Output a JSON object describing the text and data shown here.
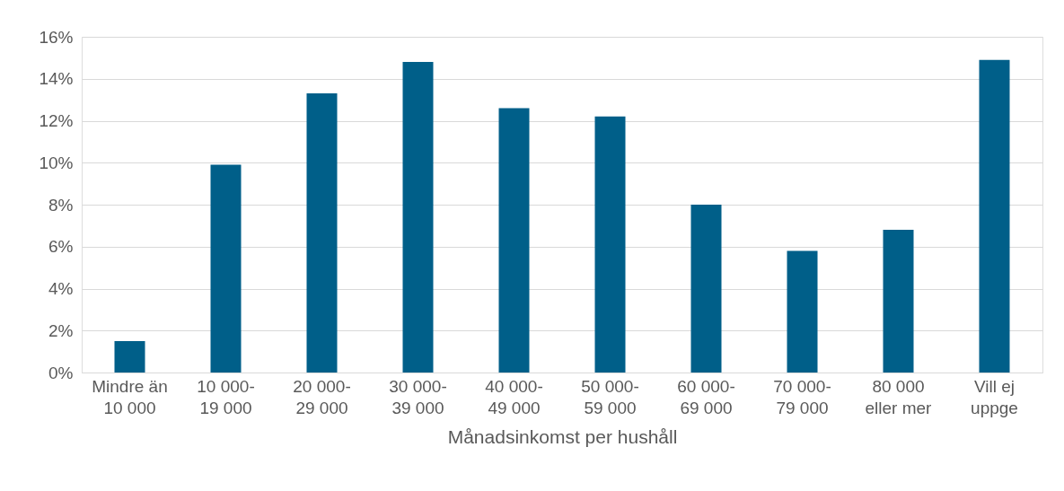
{
  "chart_data": {
    "type": "bar",
    "xlabel": "Månadsinkomst per hushåll",
    "categories": [
      "Mindre än\n10 000",
      "10 000-\n19 000",
      "20 000-\n29 000",
      "30 000-\n39 000",
      "40 000-\n49 000",
      "50 000-\n59 000",
      "60 000-\n69 000",
      "70 000-\n79 000",
      "80 000\neller mer",
      "Vill ej\nuppge"
    ],
    "values": [
      1.5,
      9.9,
      13.3,
      14.8,
      12.6,
      12.2,
      8.0,
      5.8,
      6.8,
      14.9
    ],
    "color": "#005f89",
    "ylim": [
      0,
      16
    ],
    "yticks": [
      {
        "value": 0,
        "label": "0%"
      },
      {
        "value": 2,
        "label": "2%"
      },
      {
        "value": 4,
        "label": "4%"
      },
      {
        "value": 6,
        "label": "6%"
      },
      {
        "value": 8,
        "label": "8%"
      },
      {
        "value": 10,
        "label": "10%"
      },
      {
        "value": 12,
        "label": "12%"
      },
      {
        "value": 14,
        "label": "14%"
      },
      {
        "value": 16,
        "label": "16%"
      }
    ],
    "grid": "y"
  }
}
